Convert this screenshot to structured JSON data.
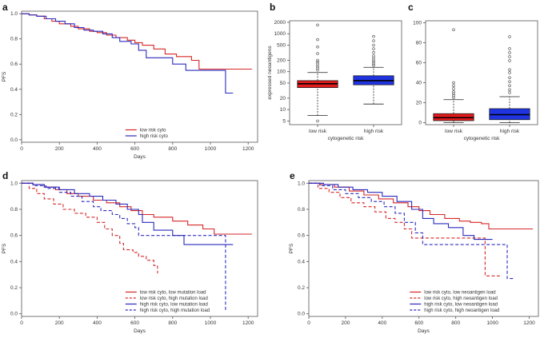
{
  "chart_data": [
    {
      "panel": "a",
      "type": "line",
      "xlabel": "Days",
      "ylabel": "PFS",
      "xlim": [
        0,
        1250
      ],
      "ylim": [
        -0.02,
        1.02
      ],
      "xticks": [
        0,
        200,
        400,
        600,
        800,
        1000,
        1200
      ],
      "yticks": [
        0.0,
        0.2,
        0.4,
        0.6,
        0.8,
        1.0
      ],
      "legend_position": "bottom-right",
      "series": [
        {
          "name": "low risk cyto",
          "color": "#d62728",
          "dash": "solid",
          "x": [
            0,
            40,
            80,
            120,
            160,
            200,
            260,
            300,
            360,
            400,
            450,
            500,
            560,
            600,
            640,
            700,
            760,
            820,
            900,
            940,
            980,
            1050,
            1100,
            1220
          ],
          "y": [
            1.0,
            0.99,
            0.98,
            0.96,
            0.94,
            0.92,
            0.9,
            0.88,
            0.86,
            0.85,
            0.83,
            0.81,
            0.79,
            0.77,
            0.75,
            0.72,
            0.68,
            0.66,
            0.63,
            0.56,
            0.56,
            0.56,
            0.56,
            0.56
          ]
        },
        {
          "name": "high risk cyto",
          "color": "#2b2bbf",
          "dash": "solid",
          "x": [
            0,
            40,
            80,
            130,
            180,
            230,
            280,
            330,
            380,
            430,
            480,
            520,
            580,
            620,
            660,
            720,
            800,
            870,
            940,
            1000,
            1070,
            1080,
            1120
          ],
          "y": [
            1.0,
            0.99,
            0.98,
            0.96,
            0.94,
            0.92,
            0.89,
            0.87,
            0.86,
            0.84,
            0.81,
            0.78,
            0.76,
            0.71,
            0.65,
            0.65,
            0.6,
            0.55,
            0.55,
            0.55,
            0.55,
            0.37,
            0.37
          ]
        }
      ]
    },
    {
      "panel": "b",
      "type": "box",
      "xlabel": "cytogenetic risk",
      "ylabel": "expressed neoantigens",
      "yscale": "log",
      "ylim": [
        4,
        2200
      ],
      "yticks": [
        5,
        10,
        20,
        50,
        100,
        200,
        500,
        1000,
        2000
      ],
      "categories": [
        "low risk",
        "high risk"
      ],
      "boxes": [
        {
          "name": "low risk",
          "color": "#e31a1c",
          "whisker_low": 7,
          "q1": 38,
          "median": 48,
          "q3": 58,
          "whisker_high": 95,
          "outliers": [
            5,
            110,
            125,
            140,
            160,
            180,
            200,
            300,
            450,
            700,
            1700
          ]
        },
        {
          "name": "high risk",
          "color": "#1f33e0",
          "whisker_low": 14,
          "q1": 45,
          "median": 58,
          "q3": 78,
          "whisker_high": 130,
          "outliers": [
            145,
            160,
            180,
            200,
            230,
            260,
            320,
            400,
            500,
            650,
            850
          ]
        }
      ]
    },
    {
      "panel": "c",
      "type": "box",
      "xlabel": "cytogenetic risk",
      "ylabel": "",
      "yscale": "linear",
      "ylim": [
        -2,
        102
      ],
      "yticks": [
        0,
        20,
        40,
        60,
        80,
        100
      ],
      "categories": [
        "low risk",
        "high risk"
      ],
      "boxes": [
        {
          "name": "low risk",
          "color": "#e31a1c",
          "whisker_low": 0,
          "q1": 2,
          "median": 5,
          "q3": 9,
          "whisker_high": 23,
          "outliers": [
            25,
            27,
            29,
            31,
            34,
            37,
            40,
            93
          ]
        },
        {
          "name": "high risk",
          "color": "#1f33e0",
          "whisker_low": 0,
          "q1": 3,
          "median": 8,
          "q3": 14,
          "whisker_high": 26,
          "outliers": [
            30,
            33,
            37,
            41,
            45,
            50,
            53,
            62,
            66,
            70,
            74,
            86
          ]
        }
      ]
    },
    {
      "panel": "d",
      "type": "line",
      "xlabel": "Days",
      "ylabel": "PFS",
      "xlim": [
        0,
        1250
      ],
      "ylim": [
        -0.02,
        1.02
      ],
      "xticks": [
        0,
        200,
        400,
        600,
        800,
        1000,
        1200
      ],
      "yticks": [
        0.0,
        0.2,
        0.4,
        0.6,
        0.8,
        1.0
      ],
      "legend_position": "bottom-right",
      "series": [
        {
          "name": "low risk cyto, low mutation load",
          "color": "#d62728",
          "dash": "solid",
          "x": [
            0,
            60,
            120,
            180,
            240,
            300,
            380,
            450,
            520,
            580,
            640,
            700,
            800,
            880,
            960,
            1020,
            1220
          ],
          "y": [
            1.0,
            0.99,
            0.97,
            0.95,
            0.92,
            0.9,
            0.87,
            0.85,
            0.82,
            0.79,
            0.76,
            0.74,
            0.71,
            0.68,
            0.65,
            0.61,
            0.61
          ]
        },
        {
          "name": "low risk cyto, high mutation load",
          "color": "#d62728",
          "dash": "dashed",
          "x": [
            0,
            40,
            80,
            120,
            170,
            220,
            280,
            340,
            400,
            440,
            480,
            520,
            540,
            590,
            620,
            660,
            700,
            720
          ],
          "y": [
            1.0,
            0.96,
            0.92,
            0.88,
            0.84,
            0.8,
            0.77,
            0.74,
            0.7,
            0.65,
            0.6,
            0.54,
            0.49,
            0.47,
            0.44,
            0.41,
            0.37,
            0.31
          ]
        },
        {
          "name": "high risk cyto, low mutation load",
          "color": "#2b2bbf",
          "dash": "solid",
          "x": [
            0,
            60,
            120,
            200,
            280,
            360,
            430,
            500,
            560,
            620,
            640,
            700,
            800,
            860,
            940,
            1000,
            1120
          ],
          "y": [
            1.0,
            0.99,
            0.97,
            0.95,
            0.92,
            0.9,
            0.87,
            0.84,
            0.8,
            0.76,
            0.7,
            0.64,
            0.6,
            0.53,
            0.53,
            0.53,
            0.53
          ]
        },
        {
          "name": "high risk cyto, high mutation load",
          "color": "#2b2bbf",
          "dash": "dashed",
          "x": [
            0,
            60,
            130,
            200,
            260,
            320,
            380,
            420,
            480,
            520,
            560,
            600,
            620,
            660,
            800,
            960,
            1060,
            1080
          ],
          "y": [
            1.0,
            0.98,
            0.96,
            0.93,
            0.9,
            0.86,
            0.82,
            0.79,
            0.76,
            0.73,
            0.69,
            0.66,
            0.6,
            0.6,
            0.6,
            0.6,
            0.6,
            0.02
          ]
        }
      ]
    },
    {
      "panel": "e",
      "type": "line",
      "xlabel": "Days",
      "ylabel": "PFS",
      "xlim": [
        0,
        1250
      ],
      "ylim": [
        -0.02,
        1.02
      ],
      "xticks": [
        0,
        200,
        400,
        600,
        800,
        1000,
        1200
      ],
      "yticks": [
        0.0,
        0.2,
        0.4,
        0.6,
        0.8,
        1.0
      ],
      "legend_position": "bottom-right",
      "series": [
        {
          "name": "low risk cyto, low neoantigen load",
          "color": "#d62728",
          "dash": "solid",
          "x": [
            0,
            60,
            140,
            220,
            300,
            380,
            460,
            540,
            600,
            660,
            740,
            820,
            880,
            940,
            980,
            1220
          ],
          "y": [
            1.0,
            0.99,
            0.97,
            0.94,
            0.91,
            0.88,
            0.85,
            0.82,
            0.79,
            0.76,
            0.73,
            0.71,
            0.7,
            0.69,
            0.65,
            0.65
          ]
        },
        {
          "name": "low risk cyto, high neoantigen load",
          "color": "#d62728",
          "dash": "dashed",
          "x": [
            0,
            50,
            110,
            170,
            230,
            300,
            360,
            420,
            470,
            520,
            560,
            600,
            960,
            1040
          ],
          "y": [
            1.0,
            0.96,
            0.93,
            0.89,
            0.85,
            0.82,
            0.78,
            0.73,
            0.7,
            0.65,
            0.58,
            0.58,
            0.29,
            0.29
          ]
        },
        {
          "name": "high risk cyto, low neoantigen load",
          "color": "#2b2bbf",
          "dash": "solid",
          "x": [
            0,
            80,
            160,
            240,
            320,
            400,
            480,
            560,
            620,
            680,
            760,
            840,
            900,
            1000
          ],
          "y": [
            1.0,
            0.99,
            0.97,
            0.95,
            0.93,
            0.9,
            0.86,
            0.8,
            0.73,
            0.69,
            0.66,
            0.6,
            0.57,
            0.57
          ]
        },
        {
          "name": "high risk cyto, high neoantigen load",
          "color": "#2b2bbf",
          "dash": "dashed",
          "x": [
            0,
            60,
            130,
            200,
            270,
            340,
            410,
            470,
            520,
            580,
            620,
            1080,
            1120
          ],
          "y": [
            1.0,
            0.98,
            0.95,
            0.92,
            0.89,
            0.86,
            0.82,
            0.77,
            0.7,
            0.62,
            0.53,
            0.27,
            0.27
          ]
        }
      ]
    }
  ]
}
